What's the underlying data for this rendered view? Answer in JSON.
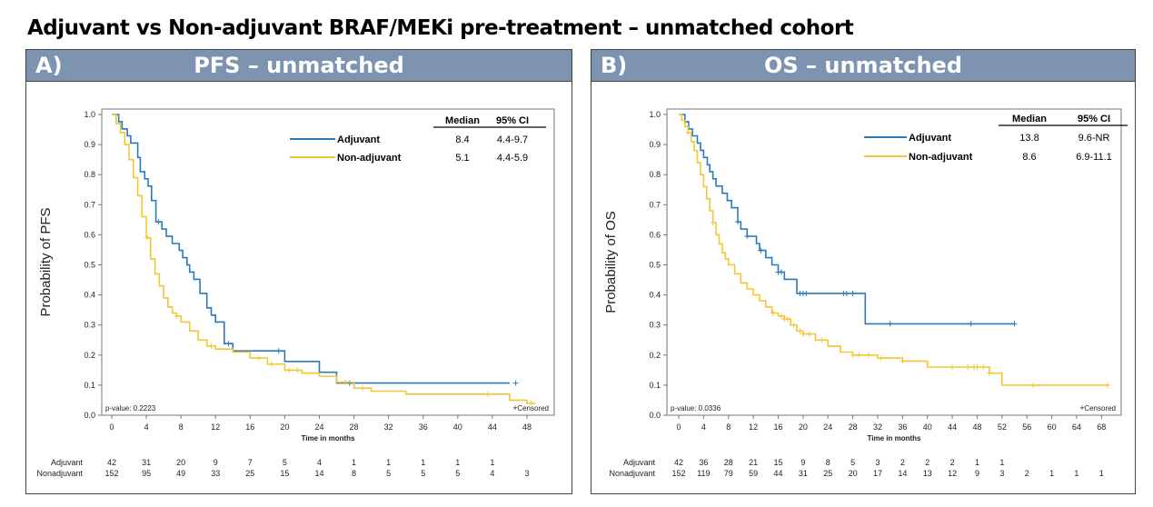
{
  "page_title": "Adjuvant vs Non-adjuvant BRAF/MEKi pre-treatment – unmatched cohort",
  "colors": {
    "adjuvant": "#2b79bd",
    "nonadjuvant": "#f2c832",
    "header": "#7d93b0"
  },
  "chart_data": [
    {
      "type": "line",
      "panel_letter": "A)",
      "panel_title": "PFS – unmatched",
      "xlabel": "Time in months",
      "ylabel": "Probability of PFS",
      "xlim": [
        0,
        50
      ],
      "ylim": [
        0,
        1
      ],
      "x_ticks": [
        "0",
        "4",
        "8",
        "12",
        "16",
        "20",
        "24",
        "28",
        "32",
        "36",
        "40",
        "44",
        "48"
      ],
      "y_ticks": [
        "0.0",
        "0.1",
        "0.2",
        "0.3",
        "0.4",
        "0.5",
        "0.6",
        "0.7",
        "0.8",
        "0.9",
        "1.0"
      ],
      "pvalue": "p-value: 0.2223",
      "censored_label": "Censored",
      "censored_symbol": "+",
      "legend_header": {
        "median": "Median",
        "ci": "95% CI"
      },
      "legend": [
        {
          "name": "Adjuvant",
          "median": "8.4",
          "ci": "4.4-9.7"
        },
        {
          "name": "Non-adjuvant",
          "median": "5.1",
          "ci": "4.4-5.9"
        }
      ],
      "series": [
        {
          "name": "Adjuvant",
          "x": [
            0,
            0.8,
            1.2,
            1.8,
            2.2,
            3,
            3.3,
            3.8,
            4.2,
            4.6,
            5.1,
            5.8,
            6.3,
            7,
            7.8,
            8.2,
            8.7,
            9,
            9.5,
            10.2,
            11,
            11.5,
            12,
            13,
            14,
            16,
            18,
            19,
            20,
            22,
            23,
            24,
            26,
            27,
            30,
            36,
            40,
            46
          ],
          "y": [
            1,
            0.976,
            0.952,
            0.929,
            0.905,
            0.857,
            0.81,
            0.786,
            0.762,
            0.714,
            0.643,
            0.619,
            0.595,
            0.571,
            0.548,
            0.524,
            0.5,
            0.476,
            0.452,
            0.405,
            0.357,
            0.333,
            0.31,
            0.238,
            0.214,
            0.214,
            0.214,
            0.214,
            0.179,
            0.179,
            0.179,
            0.143,
            0.107,
            0.107,
            0.107,
            0.107,
            0.107,
            0.107
          ],
          "censor_x": [
            5.4,
            13.5,
            19.3,
            27.5,
            46.7
          ]
        },
        {
          "name": "Non-adjuvant",
          "x": [
            0,
            0.5,
            1,
            1.5,
            2,
            2.5,
            3,
            3.5,
            4,
            4.5,
            5,
            5.5,
            6,
            6.5,
            7,
            7.5,
            8,
            9,
            10,
            11,
            12,
            14,
            16,
            18,
            20,
            22,
            24,
            26,
            28,
            30,
            34,
            38,
            44,
            46,
            48,
            49
          ],
          "y": [
            1,
            0.97,
            0.94,
            0.9,
            0.85,
            0.79,
            0.73,
            0.66,
            0.59,
            0.52,
            0.47,
            0.43,
            0.39,
            0.36,
            0.34,
            0.33,
            0.31,
            0.28,
            0.25,
            0.23,
            0.22,
            0.21,
            0.19,
            0.17,
            0.15,
            0.14,
            0.13,
            0.11,
            0.09,
            0.08,
            0.07,
            0.07,
            0.07,
            0.05,
            0.04,
            0.04
          ],
          "censor_x": [
            4.1,
            7.5,
            11.5,
            17,
            18.5,
            20.5,
            21.5,
            27,
            29,
            43.5,
            48.5
          ]
        }
      ],
      "risk_table": {
        "rows": [
          {
            "label": "Adjuvant",
            "values": [
              "42",
              "31",
              "20",
              "9",
              "7",
              "5",
              "4",
              "1",
              "1",
              "1",
              "1",
              "1",
              ""
            ]
          },
          {
            "label": "Nonadjuvant",
            "values": [
              "152",
              "95",
              "49",
              "33",
              "25",
              "15",
              "14",
              "8",
              "5",
              "5",
              "5",
              "4",
              "3"
            ]
          }
        ]
      }
    },
    {
      "type": "line",
      "panel_letter": "B)",
      "panel_title": "OS – unmatched",
      "xlabel": "Time in months",
      "ylabel": "Probability of OS",
      "xlim": [
        0,
        70
      ],
      "ylim": [
        0,
        1
      ],
      "x_ticks": [
        "0",
        "4",
        "8",
        "12",
        "16",
        "20",
        "24",
        "28",
        "32",
        "36",
        "40",
        "44",
        "48",
        "52",
        "56",
        "60",
        "64",
        "68"
      ],
      "y_ticks": [
        "0.0",
        "0.1",
        "0.2",
        "0.3",
        "0.4",
        "0.5",
        "0.6",
        "0.7",
        "0.8",
        "0.9",
        "1.0"
      ],
      "pvalue": "p-value: 0.0336",
      "censored_label": "Censored",
      "censored_symbol": "+",
      "legend_header": {
        "median": "Median",
        "ci": "95% CI"
      },
      "legend": [
        {
          "name": "Adjuvant",
          "median": "13.8",
          "ci": "9.6-NR"
        },
        {
          "name": "Non-adjuvant",
          "median": "8.6",
          "ci": "6.9-11.1"
        }
      ],
      "series": [
        {
          "name": "Adjuvant",
          "x": [
            0,
            1,
            1.6,
            2.2,
            3,
            3.5,
            4,
            4.6,
            5,
            5.5,
            6,
            7,
            7.8,
            8.5,
            9.5,
            10,
            11,
            12.5,
            13,
            14,
            15,
            16,
            17,
            18,
            19,
            20,
            21,
            22,
            23,
            24,
            25,
            26,
            27,
            28,
            29,
            30,
            34,
            40,
            47,
            54
          ],
          "y": [
            1,
            0.976,
            0.952,
            0.929,
            0.905,
            0.881,
            0.857,
            0.833,
            0.81,
            0.786,
            0.762,
            0.738,
            0.714,
            0.69,
            0.643,
            0.619,
            0.595,
            0.571,
            0.548,
            0.524,
            0.5,
            0.476,
            0.452,
            0.452,
            0.405,
            0.405,
            0.405,
            0.405,
            0.405,
            0.405,
            0.405,
            0.405,
            0.405,
            0.405,
            0.405,
            0.304,
            0.304,
            0.304,
            0.304,
            0.304
          ],
          "censor_x": [
            9.5,
            11,
            13.2,
            16,
            16.5,
            19.5,
            20,
            20.5,
            26.5,
            27,
            28,
            34,
            47,
            54
          ]
        },
        {
          "name": "Non-adjuvant",
          "x": [
            0,
            0.5,
            1,
            1.5,
            2,
            2.5,
            3,
            3.5,
            4,
            4.5,
            5,
            5.5,
            6,
            6.5,
            7,
            7.5,
            8,
            9,
            10,
            11,
            12,
            13,
            14,
            15,
            16,
            17,
            18,
            19,
            20,
            22,
            24,
            26,
            28,
            30,
            32,
            36,
            40,
            44,
            48,
            50,
            52,
            56,
            60,
            64,
            68,
            69
          ],
          "y": [
            1,
            0.98,
            0.96,
            0.94,
            0.91,
            0.88,
            0.84,
            0.8,
            0.76,
            0.72,
            0.68,
            0.64,
            0.6,
            0.57,
            0.54,
            0.52,
            0.5,
            0.47,
            0.44,
            0.42,
            0.4,
            0.38,
            0.36,
            0.34,
            0.33,
            0.32,
            0.3,
            0.28,
            0.27,
            0.25,
            0.23,
            0.21,
            0.2,
            0.2,
            0.19,
            0.18,
            0.16,
            0.16,
            0.16,
            0.14,
            0.1,
            0.1,
            0.1,
            0.1,
            0.1,
            0.1
          ],
          "censor_x": [
            1.5,
            5.5,
            15.2,
            16.5,
            17,
            17.5,
            18.5,
            19.5,
            20,
            21,
            23,
            28,
            29,
            30.5,
            32.5,
            36,
            44,
            46.5,
            47.5,
            48,
            49,
            50,
            57,
            69
          ]
        }
      ],
      "risk_table": {
        "rows": [
          {
            "label": "Adjuvant",
            "values": [
              "42",
              "36",
              "28",
              "21",
              "15",
              "9",
              "8",
              "5",
              "3",
              "2",
              "2",
              "2",
              "1",
              "1",
              "",
              "",
              "",
              ""
            ]
          },
          {
            "label": "Nonadjuvant",
            "values": [
              "152",
              "119",
              "79",
              "59",
              "44",
              "31",
              "25",
              "20",
              "17",
              "14",
              "13",
              "12",
              "9",
              "3",
              "2",
              "1",
              "1",
              "1"
            ]
          }
        ]
      }
    }
  ]
}
